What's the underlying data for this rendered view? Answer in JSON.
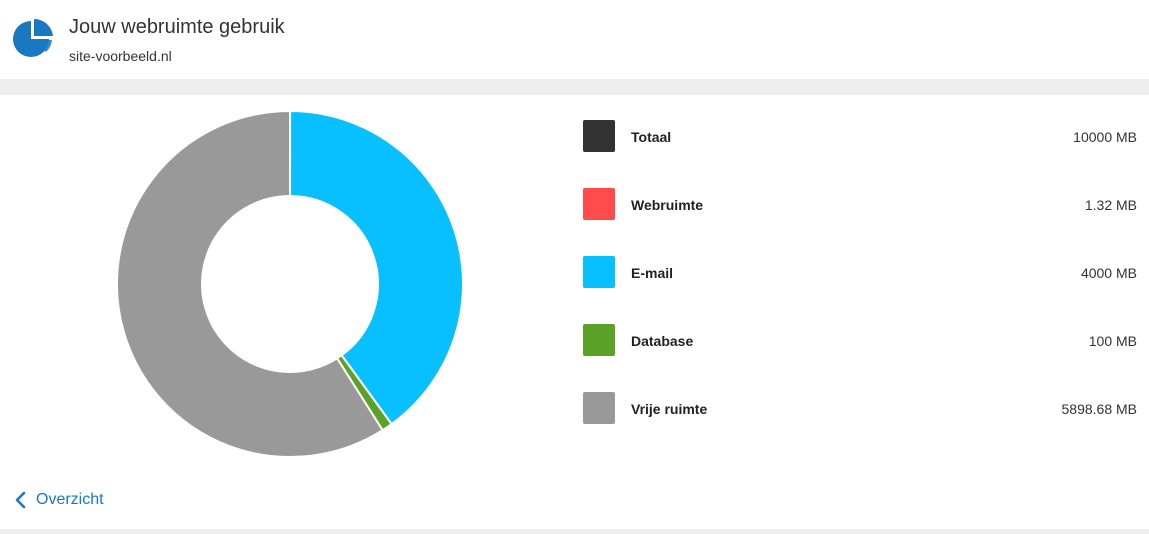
{
  "header": {
    "title": "Jouw webruimte gebruik",
    "subtitle": "site-voorbeeld.nl",
    "icon": "pie-chart-icon"
  },
  "chart_data": {
    "type": "pie",
    "variant": "donut",
    "unit": "MB",
    "total": 10000,
    "slices": [
      {
        "name": "Webruimte",
        "value": 1.32,
        "color": "#ff4b4b"
      },
      {
        "name": "E-mail",
        "value": 4000,
        "color": "#08bfff"
      },
      {
        "name": "Database",
        "value": 100,
        "color": "#5aa328"
      },
      {
        "name": "Vrije ruimte",
        "value": 5898.68,
        "color": "#999999"
      }
    ]
  },
  "legend": {
    "items": [
      {
        "label": "Totaal",
        "value": "10000 MB",
        "color": "#333333"
      },
      {
        "label": "Webruimte",
        "value": "1.32 MB",
        "color": "#ff4b4b"
      },
      {
        "label": "E-mail",
        "value": "4000 MB",
        "color": "#08bfff"
      },
      {
        "label": "Database",
        "value": "100 MB",
        "color": "#5aa328"
      },
      {
        "label": "Vrije ruimte",
        "value": "5898.68 MB",
        "color": "#999999"
      }
    ]
  },
  "nav": {
    "back_label": "Overzicht",
    "back_icon": "chevron-left-icon"
  }
}
